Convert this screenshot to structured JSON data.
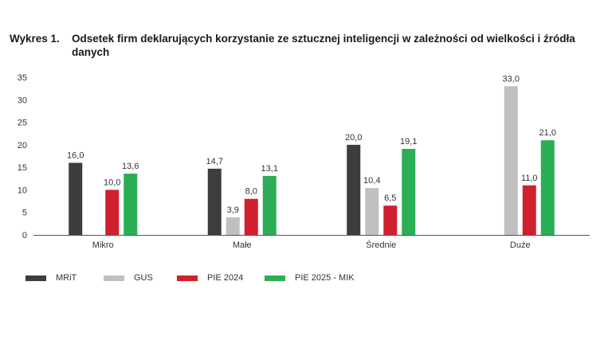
{
  "title": {
    "label": "Wykres 1.",
    "text": "Odsetek firm deklarujących korzystanie ze sztucznej inteligencji w zależności od wielkości i źródła danych"
  },
  "chart_data": {
    "type": "bar",
    "categories": [
      "Mikro",
      "Małe",
      "Średnie",
      "Duże"
    ],
    "series": [
      {
        "name": "MRiT",
        "color": "#3d3d3d",
        "values": [
          16.0,
          14.7,
          20.0,
          null
        ]
      },
      {
        "name": "GUS",
        "color": "#c0c0c0",
        "values": [
          null,
          3.9,
          10.4,
          33.0
        ]
      },
      {
        "name": "PIE 2024",
        "color": "#d0202e",
        "values": [
          10.0,
          8.0,
          6.5,
          11.0
        ]
      },
      {
        "name": "PIE 2025 - MIK",
        "color": "#2bae55",
        "values": [
          13.6,
          13.1,
          19.1,
          21.0
        ]
      }
    ],
    "value_labels": [
      [
        "16,0",
        "",
        "10,0",
        "13,6"
      ],
      [
        "14,7",
        "3,9",
        "8,0",
        "13,1"
      ],
      [
        "20,0",
        "10,4",
        "6,5",
        "19,1"
      ],
      [
        "",
        "33,0",
        "11,0",
        "21,0"
      ]
    ],
    "yticks": [
      "0",
      "5",
      "10",
      "15",
      "20",
      "25",
      "30",
      "35"
    ],
    "ylim": [
      0,
      35
    ],
    "grid": false,
    "legend": "bottom-left"
  }
}
